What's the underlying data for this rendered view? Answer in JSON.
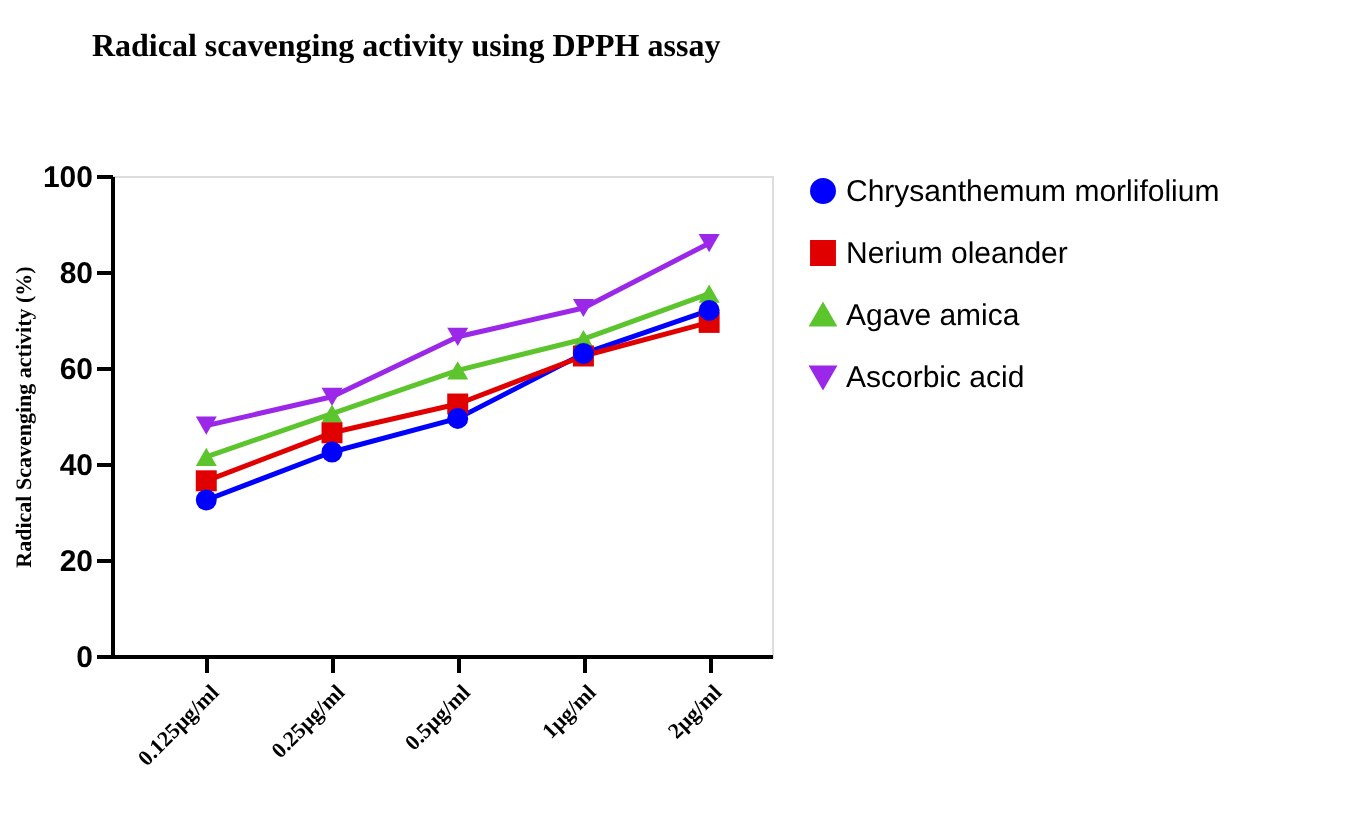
{
  "chart_data": {
    "type": "line",
    "title": "Radical scavenging activity using DPPH assay",
    "ylabel": "Radical Scavenging activity (%)",
    "categories": [
      "0.125µg/ml",
      "0.25µg/ml",
      "0.5µg/ml",
      "1µg/ml",
      "2µg/ml"
    ],
    "ylim": [
      0,
      100
    ],
    "yticks": [
      0,
      20,
      40,
      60,
      80,
      100
    ],
    "grid": false,
    "legend": "right",
    "series": [
      {
        "name": "Chrysanthemum morlifolium",
        "color": "#0000ff",
        "marker": "circle",
        "values": [
          32.5,
          42.5,
          49.5,
          63,
          72
        ]
      },
      {
        "name": "Nerium oleander",
        "color": "#e00000",
        "marker": "square",
        "values": [
          36.5,
          46.5,
          52.5,
          62.5,
          69.5
        ]
      },
      {
        "name": "Agave amica",
        "color": "#5cc42c",
        "marker": "triangle",
        "values": [
          41.5,
          50.5,
          59.5,
          66,
          75.5
        ]
      },
      {
        "name": "Ascorbic acid",
        "color": "#9b27e8",
        "marker": "triangle-down",
        "values": [
          48,
          54,
          66.5,
          72.5,
          86
        ]
      }
    ]
  }
}
